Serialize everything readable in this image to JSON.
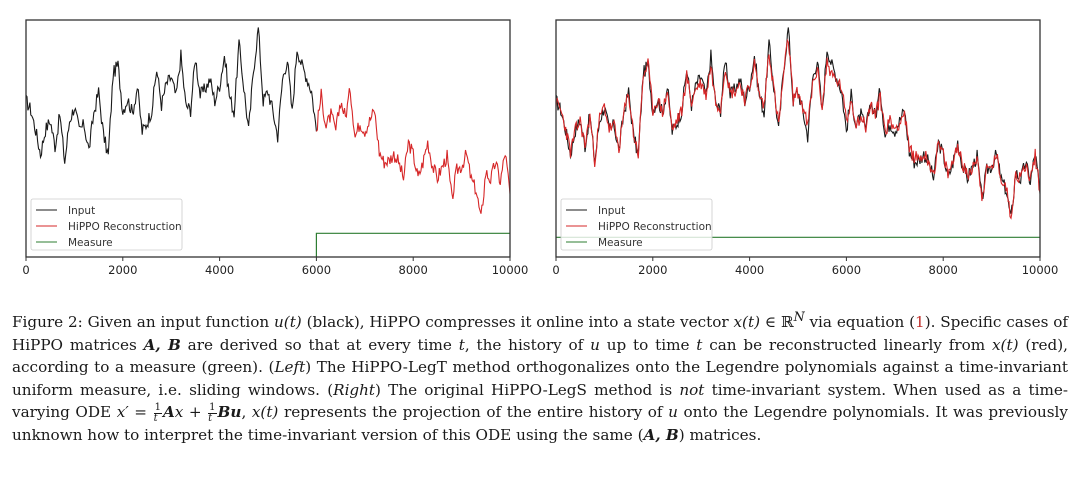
{
  "chart_data": [
    {
      "type": "line",
      "panel": "left",
      "title": "",
      "xlabel": "",
      "ylabel": "",
      "xlim": [
        0,
        10000
      ],
      "ylim": [
        -3.0,
        3.0
      ],
      "xticks": [
        0,
        2000,
        4000,
        6000,
        8000,
        10000
      ],
      "xtick_labels": [
        "0",
        "2000",
        "4000",
        "6000",
        "8000",
        "10000"
      ],
      "yticks": [],
      "grid": false,
      "legend": {
        "placement": "lower-left",
        "entries": [
          "Input",
          "HiPPO Reconstruction",
          "Measure"
        ]
      },
      "x_step": 100,
      "series": [
        {
          "name": "Input",
          "color": "#1a1a1a",
          "x_start": 0,
          "x_end": 6000
        },
        {
          "name": "HiPPO Reconstruction",
          "color": "#d62728",
          "x_start": 6000,
          "x_end": 10000
        },
        {
          "name": "Measure",
          "color": "#2e7d32",
          "shape": "step",
          "points": [
            [
              6000,
              -3.0
            ],
            [
              6000,
              -2.4
            ],
            [
              10000,
              -2.4
            ]
          ]
        }
      ]
    },
    {
      "type": "line",
      "panel": "right",
      "title": "",
      "xlabel": "",
      "ylabel": "",
      "xlim": [
        0,
        10000
      ],
      "ylim": [
        -3.0,
        3.0
      ],
      "xticks": [
        0,
        2000,
        4000,
        6000,
        8000,
        10000
      ],
      "xtick_labels": [
        "0",
        "2000",
        "4000",
        "6000",
        "8000",
        "10000"
      ],
      "yticks": [],
      "grid": false,
      "legend": {
        "placement": "lower-left",
        "entries": [
          "Input",
          "HiPPO Reconstruction",
          "Measure"
        ]
      },
      "x_step": 100,
      "series": [
        {
          "name": "Input",
          "color": "#1a1a1a",
          "x_start": 0,
          "x_end": 10000
        },
        {
          "name": "HiPPO Reconstruction",
          "color": "#d62728",
          "x_start": 0,
          "x_end": 10000
        },
        {
          "name": "Measure",
          "color": "#2e7d32",
          "shape": "flat",
          "points": [
            [
              0,
              -2.5
            ],
            [
              10000,
              -2.5
            ]
          ]
        }
      ]
    }
  ],
  "signal": {
    "input": [
      0.96,
      0.72,
      0.21,
      -0.4,
      0.22,
      0.46,
      -0.2,
      0.6,
      -0.6,
      0.46,
      0.8,
      0.2,
      0.35,
      -0.3,
      0.64,
      1.18,
      0.1,
      -0.45,
      1.64,
      1.87,
      0.7,
      1.0,
      0.64,
      1.3,
      0.17,
      0.4,
      0.72,
      1.75,
      0.85,
      1.38,
      1.55,
      1.05,
      2.1,
      0.85,
      0.72,
      2.05,
      1.1,
      1.25,
      1.5,
      0.95,
      1.35,
      2.1,
      1.1,
      0.65,
      2.4,
      1.3,
      0.2,
      1.72,
      2.8,
      0.95,
      1.2,
      0.7,
      0.05,
      1.5,
      2.0,
      0.65,
      2.3,
      1.85,
      1.55,
      1.2,
      0.2,
      1.1,
      0.3,
      0.6,
      0.2,
      0.95,
      0.55,
      1.25,
      0.05,
      0.4,
      0.2,
      0.45,
      0.72,
      -0.35,
      -0.6,
      -0.55,
      -0.4,
      -0.6,
      -1.02,
      -0.1,
      -0.4,
      -1.0,
      -0.62,
      -0.08,
      -0.7,
      -1.0,
      -0.72,
      -0.45,
      -1.55,
      -0.8,
      -0.7,
      -0.4,
      -1.05,
      -1.3,
      -2.05,
      -0.85,
      -1.05,
      -0.6,
      -1.1,
      -0.35,
      -1.4
    ],
    "reconstruction_right": [
      0.92,
      0.7,
      0.25,
      -0.35,
      0.2,
      0.44,
      -0.18,
      0.58,
      -0.55,
      0.5,
      0.82,
      0.24,
      0.32,
      -0.26,
      0.62,
      1.14,
      0.14,
      -0.4,
      1.58,
      1.9,
      0.72,
      0.98,
      0.66,
      1.22,
      0.22,
      0.45,
      0.7,
      1.6,
      0.9,
      1.3,
      1.4,
      1.1,
      1.85,
      0.92,
      0.8,
      1.85,
      1.15,
      1.2,
      1.4,
      1.0,
      1.3,
      1.9,
      1.12,
      0.8,
      2.25,
      1.25,
      0.35,
      1.6,
      2.55,
      1.0,
      1.18,
      0.8,
      0.3,
      1.35,
      1.75,
      0.8,
      1.95,
      1.6,
      1.45,
      1.3,
      0.4,
      1.0,
      0.4,
      0.55,
      0.3,
      0.85,
      0.6,
      1.05,
      0.2,
      0.45,
      0.25,
      0.42,
      0.65,
      -0.3,
      -0.45,
      -0.5,
      -0.42,
      -0.55,
      -0.9,
      -0.15,
      -0.42,
      -0.92,
      -0.6,
      -0.12,
      -0.68,
      -0.95,
      -0.7,
      -0.48,
      -1.45,
      -0.82,
      -0.72,
      -0.45,
      -1.0,
      -1.25,
      -1.95,
      -0.9,
      -1.02,
      -0.65,
      -1.05,
      -0.4,
      -1.35
    ]
  },
  "caption": {
    "label": "Figure 2:",
    "p1": " Given an input function ",
    "m_ut": "u(t)",
    "p2": " (black), HiPPO compresses it online into a state vector ",
    "m_xt": "x(t)",
    "m_in": " ∈ ℝ",
    "m_N": "N",
    "p3": " via equation (",
    "ref": "1",
    "p4": "). Specific cases of HiPPO matrices ",
    "m_AB": "A, B",
    "p5": " are derived so that at every time ",
    "m_t": "t",
    "p6": ", the history of ",
    "m_u": "u",
    "p7": " up to time ",
    "m_t2": "t",
    "p8": " can be reconstructed linearly from ",
    "m_xt2": "x(t)",
    "p9": " (red), according to a measure (green). (",
    "left": "Left",
    "p10": ") The HiPPO-LegT method orthogonalizes onto the Legendre polynomials against a time-invariant uniform measure, i.e. sliding windows. (",
    "right": "Right",
    "p11": ") The original HiPPO-LegS method is ",
    "not": "not",
    "p12": " time-invariant system. When used as a time-varying ODE ",
    "m_ode1": "x′ = ",
    "frac_num": "1",
    "frac_den": "t",
    "m_A": "A",
    "m_x": "x",
    "m_plus": " + ",
    "m_B": "B",
    "m_u2": "u",
    "p13": ", ",
    "m_xt3": "x(t)",
    "p14": " represents the projection of the entire history of ",
    "m_u3": "u",
    "p15": " onto the Legendre polynomials. It was previously unknown how to interpret the time-invariant version of this ODE using the same (",
    "m_AB2": "A, B",
    "p16": ") matrices."
  }
}
